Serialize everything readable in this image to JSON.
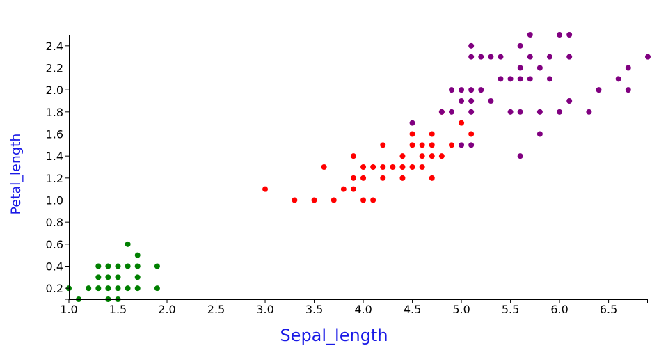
{
  "chart_data": {
    "type": "scatter",
    "title": "",
    "xlabel": "Sepal_length",
    "ylabel": "Petal_length",
    "xlim": [
      1.0,
      6.9
    ],
    "ylim": [
      0.1,
      2.5
    ],
    "grid": false,
    "legend": "none",
    "axis_title_color": "#1a1ae6",
    "x_ticks": [
      "1.0",
      "1.5",
      "2.0",
      "2.5",
      "3.0",
      "3.5",
      "4.0",
      "4.5",
      "5.0",
      "5.5",
      "6.0",
      "6.5"
    ],
    "y_ticks": [
      "0.2",
      "0.4",
      "0.6",
      "0.8",
      "1.0",
      "1.2",
      "1.4",
      "1.6",
      "1.8",
      "2.0",
      "2.2",
      "2.4"
    ],
    "series": [
      {
        "color": "#008000",
        "points": [
          [
            1.0,
            0.2
          ],
          [
            1.1,
            0.1
          ],
          [
            1.2,
            0.2
          ],
          [
            1.3,
            0.2
          ],
          [
            1.3,
            0.3
          ],
          [
            1.3,
            0.4
          ],
          [
            1.4,
            0.1
          ],
          [
            1.4,
            0.2
          ],
          [
            1.4,
            0.3
          ],
          [
            1.4,
            0.4
          ],
          [
            1.5,
            0.1
          ],
          [
            1.5,
            0.2
          ],
          [
            1.5,
            0.3
          ],
          [
            1.5,
            0.4
          ],
          [
            1.6,
            0.2
          ],
          [
            1.6,
            0.4
          ],
          [
            1.6,
            0.6
          ],
          [
            1.7,
            0.2
          ],
          [
            1.7,
            0.3
          ],
          [
            1.7,
            0.4
          ],
          [
            1.7,
            0.5
          ],
          [
            1.9,
            0.2
          ],
          [
            1.9,
            0.4
          ]
        ]
      },
      {
        "color": "#ff0000",
        "points": [
          [
            3.0,
            1.1
          ],
          [
            3.3,
            1.0
          ],
          [
            3.5,
            1.0
          ],
          [
            3.6,
            1.3
          ],
          [
            3.7,
            1.0
          ],
          [
            3.8,
            1.1
          ],
          [
            3.9,
            1.1
          ],
          [
            3.9,
            1.2
          ],
          [
            3.9,
            1.4
          ],
          [
            4.0,
            1.0
          ],
          [
            4.0,
            1.2
          ],
          [
            4.0,
            1.3
          ],
          [
            4.1,
            1.0
          ],
          [
            4.1,
            1.3
          ],
          [
            4.2,
            1.2
          ],
          [
            4.2,
            1.3
          ],
          [
            4.2,
            1.5
          ],
          [
            4.3,
            1.3
          ],
          [
            4.4,
            1.2
          ],
          [
            4.4,
            1.3
          ],
          [
            4.4,
            1.4
          ],
          [
            4.5,
            1.3
          ],
          [
            4.5,
            1.5
          ],
          [
            4.5,
            1.6
          ],
          [
            4.6,
            1.3
          ],
          [
            4.6,
            1.4
          ],
          [
            4.6,
            1.5
          ],
          [
            4.7,
            1.2
          ],
          [
            4.7,
            1.4
          ],
          [
            4.7,
            1.5
          ],
          [
            4.7,
            1.6
          ],
          [
            4.8,
            1.4
          ],
          [
            4.8,
            1.8
          ],
          [
            4.9,
            1.5
          ],
          [
            5.0,
            1.7
          ],
          [
            5.1,
            1.6
          ]
        ]
      },
      {
        "color": "#800080",
        "points": [
          [
            4.5,
            1.7
          ],
          [
            4.8,
            1.8
          ],
          [
            4.9,
            1.8
          ],
          [
            4.9,
            2.0
          ],
          [
            5.0,
            1.5
          ],
          [
            5.0,
            1.9
          ],
          [
            5.0,
            2.0
          ],
          [
            5.1,
            1.5
          ],
          [
            5.1,
            1.8
          ],
          [
            5.1,
            1.9
          ],
          [
            5.1,
            2.0
          ],
          [
            5.1,
            2.3
          ],
          [
            5.1,
            2.4
          ],
          [
            5.2,
            2.0
          ],
          [
            5.2,
            2.3
          ],
          [
            5.3,
            1.9
          ],
          [
            5.3,
            2.3
          ],
          [
            5.4,
            2.1
          ],
          [
            5.4,
            2.3
          ],
          [
            5.5,
            1.8
          ],
          [
            5.5,
            2.1
          ],
          [
            5.6,
            1.4
          ],
          [
            5.6,
            1.8
          ],
          [
            5.6,
            2.1
          ],
          [
            5.6,
            2.2
          ],
          [
            5.6,
            2.4
          ],
          [
            5.7,
            2.1
          ],
          [
            5.7,
            2.3
          ],
          [
            5.7,
            2.5
          ],
          [
            5.8,
            1.6
          ],
          [
            5.8,
            1.8
          ],
          [
            5.8,
            2.2
          ],
          [
            5.9,
            2.1
          ],
          [
            5.9,
            2.3
          ],
          [
            6.0,
            1.8
          ],
          [
            6.0,
            2.5
          ],
          [
            6.1,
            1.9
          ],
          [
            6.1,
            2.3
          ],
          [
            6.1,
            2.5
          ],
          [
            6.3,
            1.8
          ],
          [
            6.4,
            2.0
          ],
          [
            6.6,
            2.1
          ],
          [
            6.7,
            2.0
          ],
          [
            6.7,
            2.2
          ],
          [
            6.9,
            2.3
          ]
        ]
      }
    ]
  }
}
